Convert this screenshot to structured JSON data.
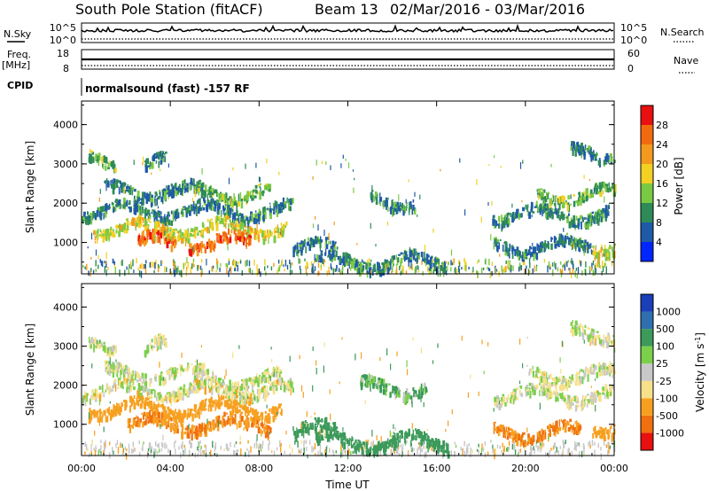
{
  "header": {
    "station": "South Pole Station (fitACF)",
    "beam": "Beam 13",
    "date_range": "02/Mar/2016 - 03/Mar/2016"
  },
  "status_panels": {
    "nsky_label": "N.Sky",
    "nsky_top": "10^5",
    "nsky_bottom": "10^0",
    "nsearch_label": "N.Search",
    "nsearch_top": "10^5",
    "nsearch_bottom": "10^0",
    "freq_label": "Freq.",
    "freq_unit": "[MHz]",
    "freq_top": "18",
    "freq_bottom": "8",
    "nave_label": "Nave",
    "nave_top": "60",
    "nave_bottom": "0",
    "cpid_label": "CPID",
    "cpid_value": "normalsound (fast) -157 RF"
  },
  "chart_data": [
    {
      "type": "heatmap",
      "panel": "power",
      "ylabel": "Slant Range [km]",
      "xlabel": "",
      "ylim": [
        200,
        4600
      ],
      "y_ticks": [
        "1000",
        "2000",
        "3000",
        "4000"
      ],
      "colorbar": {
        "label": "Power [dB]",
        "ticks": [
          "4",
          "8",
          "12",
          "16",
          "20",
          "24",
          "28"
        ],
        "colors": [
          "#0026ff",
          "#1f5aa8",
          "#2e8b57",
          "#7ac943",
          "#f2d024",
          "#f39a1e",
          "#f26a10",
          "#e81010"
        ]
      },
      "echo_regions": [
        {
          "start_hr": 0.3,
          "end_hr": 1.5,
          "range_km": 3100,
          "value": 12
        },
        {
          "start_hr": 2.8,
          "end_hr": 3.8,
          "range_km": 3050,
          "value": 8
        },
        {
          "start_hr": 1.0,
          "end_hr": 5.5,
          "range_km": 2350,
          "value": 8
        },
        {
          "start_hr": 5.0,
          "end_hr": 8.5,
          "range_km": 2300,
          "value": 12
        },
        {
          "start_hr": 0.0,
          "end_hr": 9.5,
          "range_km": 1850,
          "value": 8
        },
        {
          "start_hr": 0.5,
          "end_hr": 9.2,
          "range_km": 1400,
          "value": 16
        },
        {
          "start_hr": 2.5,
          "end_hr": 4.2,
          "range_km": 1050,
          "value": 24
        },
        {
          "start_hr": 4.8,
          "end_hr": 7.6,
          "range_km": 1050,
          "value": 24
        },
        {
          "start_hr": 9.5,
          "end_hr": 11.5,
          "range_km": 900,
          "value": 8
        },
        {
          "start_hr": 10.5,
          "end_hr": 16.5,
          "range_km": 550,
          "value": 8
        },
        {
          "start_hr": 13.0,
          "end_hr": 15.0,
          "range_km": 2100,
          "value": 8
        },
        {
          "start_hr": 18.5,
          "end_hr": 23.8,
          "range_km": 1750,
          "value": 8
        },
        {
          "start_hr": 20.5,
          "end_hr": 24.0,
          "range_km": 2250,
          "value": 12
        },
        {
          "start_hr": 22.0,
          "end_hr": 24.0,
          "range_km": 3350,
          "value": 8
        },
        {
          "start_hr": 18.5,
          "end_hr": 23.0,
          "range_km": 950,
          "value": 8
        },
        {
          "start_hr": 23.0,
          "end_hr": 24.0,
          "range_km": 1000,
          "value": 16
        }
      ]
    },
    {
      "type": "heatmap",
      "panel": "velocity",
      "ylabel": "Slant Range [km]",
      "xlabel": "Time UT",
      "ylim": [
        200,
        4600
      ],
      "y_ticks": [
        "1000",
        "2000",
        "3000",
        "4000"
      ],
      "x_ticks": [
        "00:00",
        "04:00",
        "08:00",
        "12:00",
        "16:00",
        "20:00",
        "00:00"
      ],
      "xlim_hours": [
        0,
        24
      ],
      "colorbar": {
        "label": "Velocity [m s^-1]",
        "ticks": [
          "1000",
          "500",
          "100",
          "25",
          "-25",
          "-100",
          "-500",
          "-1000"
        ],
        "colors": [
          "#1a3fb8",
          "#2f6fb0",
          "#3c9a5a",
          "#7ad04a",
          "#c8c8c8",
          "#f7e08a",
          "#f7a020",
          "#f07010",
          "#e81010"
        ]
      },
      "echo_regions": [
        {
          "start_hr": 0.3,
          "end_hr": 1.5,
          "range_km": 3000,
          "value": 0
        },
        {
          "start_hr": 2.8,
          "end_hr": 3.8,
          "range_km": 3050,
          "value": 0
        },
        {
          "start_hr": 1.0,
          "end_hr": 5.5,
          "range_km": 2350,
          "value": 0
        },
        {
          "start_hr": 5.0,
          "end_hr": 9.0,
          "range_km": 2200,
          "value": 0
        },
        {
          "start_hr": 0.0,
          "end_hr": 9.5,
          "range_km": 1900,
          "value": -25
        },
        {
          "start_hr": 0.3,
          "end_hr": 9.0,
          "range_km": 1450,
          "value": -300
        },
        {
          "start_hr": 2.0,
          "end_hr": 8.5,
          "range_km": 1050,
          "value": -500
        },
        {
          "start_hr": 9.5,
          "end_hr": 11.5,
          "range_km": 900,
          "value": 300
        },
        {
          "start_hr": 10.5,
          "end_hr": 16.5,
          "range_km": 600,
          "value": 300
        },
        {
          "start_hr": 12.5,
          "end_hr": 15.5,
          "range_km": 2000,
          "value": 100
        },
        {
          "start_hr": 18.5,
          "end_hr": 24.0,
          "range_km": 1800,
          "value": 0
        },
        {
          "start_hr": 20.0,
          "end_hr": 24.0,
          "range_km": 2300,
          "value": 0
        },
        {
          "start_hr": 22.0,
          "end_hr": 24.0,
          "range_km": 3400,
          "value": 0
        },
        {
          "start_hr": 18.5,
          "end_hr": 22.5,
          "range_km": 850,
          "value": -500
        },
        {
          "start_hr": 23.0,
          "end_hr": 24.0,
          "range_km": 1000,
          "value": -300
        }
      ]
    }
  ]
}
